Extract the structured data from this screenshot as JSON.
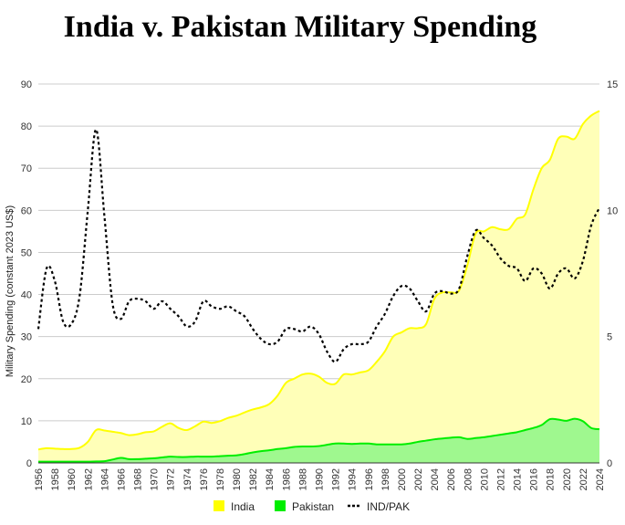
{
  "chart_data": {
    "type": "area",
    "title": "India v. Pakistan Military Spending",
    "ylabel": "Military Spending (constant 2023 US$)",
    "y2label": "",
    "ylim": [
      0,
      90
    ],
    "y2lim": [
      0,
      15
    ],
    "yticks": [
      "0",
      "10",
      "20",
      "30",
      "40",
      "50",
      "60",
      "70",
      "80",
      "90"
    ],
    "y2ticks": [
      "0",
      "5",
      "10",
      "15"
    ],
    "xtick_labels": [
      "1956",
      "1958",
      "1960",
      "1962",
      "1964",
      "1966",
      "1968",
      "1970",
      "1972",
      "1974",
      "1976",
      "1978",
      "1980",
      "1982",
      "1984",
      "1986",
      "1988",
      "1990",
      "1992",
      "1994",
      "1996",
      "1998",
      "2000",
      "2002",
      "2004",
      "2006",
      "2008",
      "2010",
      "2012",
      "2014",
      "2016",
      "2018",
      "2020",
      "2022",
      "2024"
    ],
    "x": [
      1956,
      1957,
      1958,
      1959,
      1960,
      1961,
      1962,
      1963,
      1964,
      1965,
      1966,
      1967,
      1968,
      1969,
      1970,
      1971,
      1972,
      1973,
      1974,
      1975,
      1976,
      1977,
      1978,
      1979,
      1980,
      1981,
      1982,
      1983,
      1984,
      1985,
      1986,
      1987,
      1988,
      1989,
      1990,
      1991,
      1992,
      1993,
      1994,
      1995,
      1996,
      1997,
      1998,
      1999,
      2000,
      2001,
      2002,
      2003,
      2004,
      2005,
      2006,
      2007,
      2008,
      2009,
      2010,
      2011,
      2012,
      2013,
      2014,
      2015,
      2016,
      2017,
      2018,
      2019,
      2020,
      2021,
      2022,
      2023,
      2024
    ],
    "grid": true,
    "legend_position": "bottom",
    "series": [
      {
        "name": "India",
        "kind": "area",
        "axis": "left",
        "color": "#ffff00",
        "fill": "#ffffb8",
        "values": [
          3.2,
          3.5,
          3.4,
          3.3,
          3.3,
          3.6,
          5.0,
          7.8,
          7.7,
          7.4,
          7.1,
          6.6,
          6.8,
          7.3,
          7.5,
          8.6,
          9.4,
          8.3,
          7.8,
          8.7,
          9.8,
          9.5,
          9.9,
          10.7,
          11.2,
          12.0,
          12.7,
          13.2,
          14.0,
          16.0,
          19.0,
          20.0,
          21.0,
          21.2,
          20.5,
          19.0,
          18.8,
          21.0,
          21.0,
          21.5,
          22.0,
          24.0,
          26.5,
          30.0,
          31.0,
          32.0,
          32.0,
          33.0,
          39.0,
          40.5,
          40.5,
          41.0,
          47.0,
          54.5,
          55.0,
          56.0,
          55.5,
          55.5,
          58.0,
          59.0,
          65.0,
          70.0,
          72.0,
          77.0,
          77.5,
          77.0,
          80.5,
          82.5,
          83.6
        ]
      },
      {
        "name": "Pakistan",
        "kind": "area",
        "axis": "left",
        "color": "#00ee00",
        "fill": "#9ff88f",
        "values": [
          0.3,
          0.3,
          0.3,
          0.3,
          0.3,
          0.3,
          0.3,
          0.35,
          0.4,
          0.8,
          1.2,
          0.9,
          0.9,
          1.0,
          1.1,
          1.3,
          1.5,
          1.4,
          1.4,
          1.5,
          1.5,
          1.5,
          1.6,
          1.7,
          1.8,
          2.1,
          2.5,
          2.8,
          3.0,
          3.3,
          3.5,
          3.8,
          3.9,
          3.9,
          4.0,
          4.3,
          4.6,
          4.6,
          4.5,
          4.6,
          4.6,
          4.4,
          4.4,
          4.4,
          4.4,
          4.6,
          5.0,
          5.3,
          5.6,
          5.8,
          6.0,
          6.1,
          5.7,
          5.9,
          6.1,
          6.4,
          6.7,
          7.0,
          7.3,
          7.8,
          8.3,
          9.0,
          10.4,
          10.3,
          10.0,
          10.5,
          9.9,
          8.3,
          8.0
        ]
      },
      {
        "name": "IND/PAK",
        "kind": "line",
        "axis": "right",
        "color": "#000000",
        "dash": "3,3",
        "values": [
          5.3,
          7.7,
          7.2,
          5.6,
          5.5,
          6.6,
          10.0,
          13.2,
          9.8,
          6.3,
          5.7,
          6.4,
          6.5,
          6.4,
          6.1,
          6.4,
          6.1,
          5.8,
          5.4,
          5.6,
          6.4,
          6.2,
          6.1,
          6.2,
          6.0,
          5.8,
          5.3,
          4.9,
          4.7,
          4.8,
          5.3,
          5.3,
          5.2,
          5.4,
          5.1,
          4.4,
          4.0,
          4.5,
          4.7,
          4.7,
          4.8,
          5.4,
          5.9,
          6.6,
          7.0,
          6.9,
          6.4,
          6.0,
          6.7,
          6.8,
          6.7,
          6.9,
          8.2,
          9.2,
          8.9,
          8.6,
          8.1,
          7.8,
          7.7,
          7.2,
          7.7,
          7.5,
          6.9,
          7.5,
          7.7,
          7.3,
          8.0,
          9.4,
          10.1
        ]
      }
    ]
  }
}
